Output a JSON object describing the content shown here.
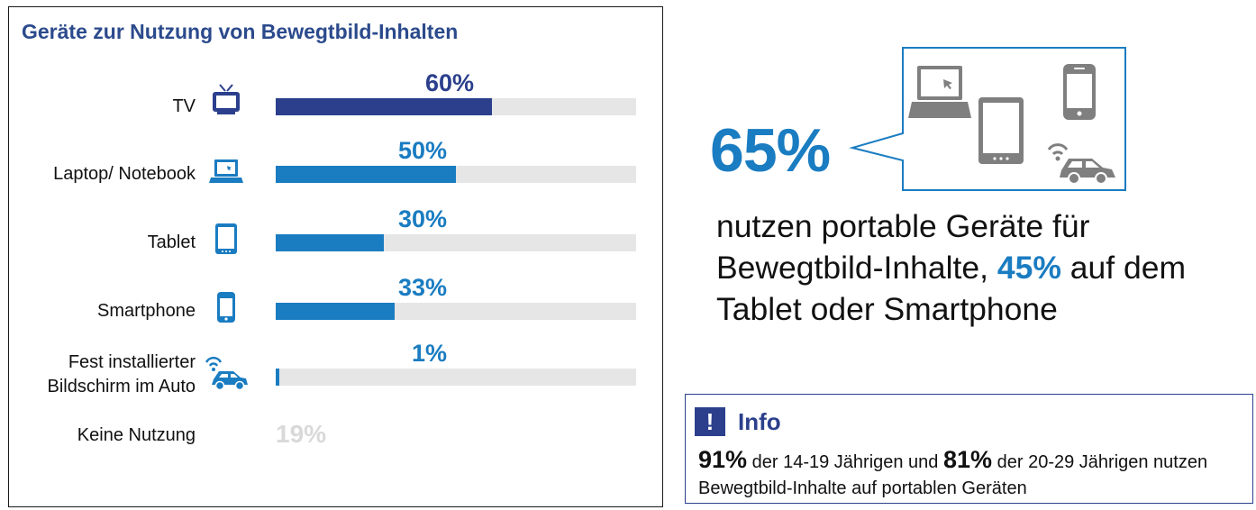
{
  "panel": {
    "title": "Geräte zur Nutzung von Bewegtbild-Inhalten"
  },
  "chart_data": {
    "type": "bar",
    "orientation": "horizontal",
    "title": "Geräte zur Nutzung von Bewegtbild-Inhalten",
    "categories": [
      "TV",
      "Laptop/ Notebook",
      "Tablet",
      "Smartphone",
      "Fest installierter Bildschirm im Auto"
    ],
    "values": [
      60,
      50,
      30,
      33,
      1
    ],
    "value_labels": [
      "60%",
      "50%",
      "30%",
      "33%",
      "1%"
    ],
    "icons": [
      "tv-icon",
      "laptop-icon",
      "tablet-icon",
      "smartphone-icon",
      "car-icon"
    ],
    "xlim": [
      0,
      100
    ],
    "extra_row": {
      "label": "Keine Nutzung",
      "value": 19,
      "value_label": "19%"
    },
    "colors": {
      "first_bar": "#2b3f8c",
      "bars": "#1a7cc1",
      "track": "#e6e6e6",
      "muted_value": "#d9d9d9"
    }
  },
  "highlight": {
    "percent": "65%",
    "statement_before": "nutzen portable Geräte für Bewegtbild-Inhalte,",
    "statement_highlight": "45%",
    "statement_after": "auf dem Tablet oder Smartphone"
  },
  "bubble_icons": [
    "laptop-icon",
    "tablet-icon",
    "smartphone-icon",
    "car-icon"
  ],
  "info": {
    "icon_glyph": "!",
    "title": "Info",
    "pct1": "91%",
    "text1": "der 14-19 Jährigen und",
    "pct2": "81%",
    "text2": "der 20-29 Jährigen nutzen Bewegtbild-Inhalte auf portablen Geräten"
  },
  "colors": {
    "accent": "#1a7cc1",
    "navy": "#2b3f8c",
    "gray_icon": "#7f7f7f"
  }
}
